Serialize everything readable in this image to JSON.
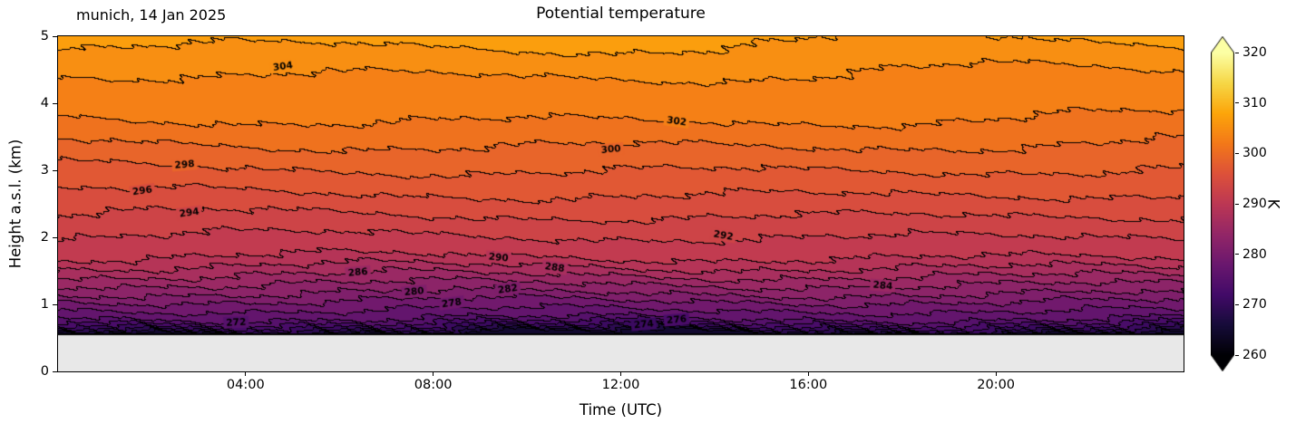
{
  "chart_data": {
    "type": "heatmap",
    "subtype": "filled-contour",
    "title": "Potential temperature",
    "annotation": "munich, 14 Jan 2025",
    "xlabel": "Time (UTC)",
    "ylabel": "Height a.s.l. (km)",
    "xlim": [
      0,
      24
    ],
    "ylim": [
      0,
      5
    ],
    "x_ticks": [
      {
        "t": 4,
        "label": "04:00"
      },
      {
        "t": 8,
        "label": "08:00"
      },
      {
        "t": 12,
        "label": "12:00"
      },
      {
        "t": 16,
        "label": "16:00"
      },
      {
        "t": 20,
        "label": "20:00"
      }
    ],
    "y_ticks": [
      {
        "z": 0,
        "label": "0"
      },
      {
        "z": 1,
        "label": "1"
      },
      {
        "z": 2,
        "label": "2"
      },
      {
        "z": 3,
        "label": "3"
      },
      {
        "z": 4,
        "label": "4"
      },
      {
        "z": 5,
        "label": "5"
      }
    ],
    "colorbar": {
      "label": "K",
      "min": 260,
      "max": 320,
      "ticks": [
        260,
        270,
        280,
        290,
        300,
        310,
        320
      ],
      "extend": "both",
      "colormap": "inferno",
      "colormap_stops": [
        "#000004",
        "#160b39",
        "#420a68",
        "#6a176e",
        "#932667",
        "#bc3754",
        "#dd513a",
        "#f37819",
        "#fca50a",
        "#f6d746",
        "#fcffa4"
      ]
    },
    "contour_interval_K": 2,
    "field_min_height_km": 0.55,
    "profile_height_theta": [
      [
        0.55,
        264.0
      ],
      [
        0.62,
        269.0
      ],
      [
        0.68,
        272.0
      ],
      [
        0.74,
        274.5
      ],
      [
        0.8,
        276.5
      ],
      [
        0.95,
        278.5
      ],
      [
        1.08,
        280.5
      ],
      [
        1.18,
        282.3
      ],
      [
        1.32,
        284.3
      ],
      [
        1.45,
        286.3
      ],
      [
        1.58,
        288.3
      ],
      [
        1.72,
        290.2
      ],
      [
        2.05,
        292.2
      ],
      [
        2.36,
        294.2
      ],
      [
        2.68,
        296.2
      ],
      [
        3.05,
        298.2
      ],
      [
        3.42,
        300.2
      ],
      [
        3.8,
        302.2
      ],
      [
        4.55,
        304.3
      ],
      [
        5.0,
        306.6
      ]
    ],
    "contour_labels": [
      {
        "value": "304",
        "t": 4.8,
        "z": 4.55,
        "rot": 8
      },
      {
        "value": "302",
        "t": 13.2,
        "z": 3.73,
        "rot": -8
      },
      {
        "value": "300",
        "t": 11.8,
        "z": 3.31,
        "rot": 5
      },
      {
        "value": "298",
        "t": 2.7,
        "z": 3.08,
        "rot": 5
      },
      {
        "value": "296",
        "t": 1.8,
        "z": 2.69,
        "rot": 8
      },
      {
        "value": "294",
        "t": 2.8,
        "z": 2.36,
        "rot": 8
      },
      {
        "value": "292",
        "t": 14.2,
        "z": 2.02,
        "rot": -10
      },
      {
        "value": "290",
        "t": 9.4,
        "z": 1.69,
        "rot": -5
      },
      {
        "value": "288",
        "t": 10.6,
        "z": 1.54,
        "rot": -8
      },
      {
        "value": "286",
        "t": 6.4,
        "z": 1.47,
        "rot": 5
      },
      {
        "value": "284",
        "t": 17.6,
        "z": 1.27,
        "rot": -5
      },
      {
        "value": "282",
        "t": 9.6,
        "z": 1.22,
        "rot": 8
      },
      {
        "value": "280",
        "t": 7.6,
        "z": 1.18,
        "rot": 5
      },
      {
        "value": "278",
        "t": 8.4,
        "z": 1.01,
        "rot": 8
      },
      {
        "value": "276",
        "t": 13.2,
        "z": 0.76,
        "rot": 5
      },
      {
        "value": "274",
        "t": 12.5,
        "z": 0.69,
        "rot": 5
      },
      {
        "value": "272",
        "t": 3.8,
        "z": 0.72,
        "rot": 3
      }
    ],
    "colors": {
      "background": "#ffffff",
      "no_data": "#e8e8e8",
      "contour_line": "#000000"
    }
  }
}
